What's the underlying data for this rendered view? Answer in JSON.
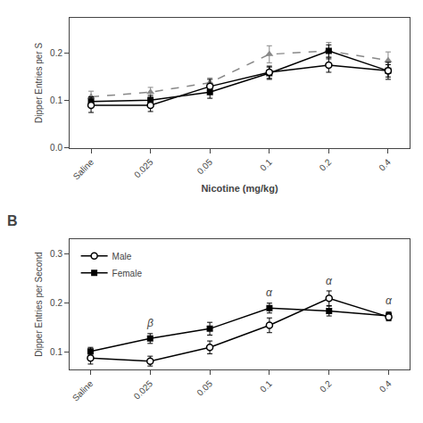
{
  "chart_data": [
    {
      "type": "line",
      "categories": [
        "Saline",
        "0.025",
        "0.05",
        "0.1",
        "0.2",
        "0.4"
      ],
      "xlabel": "Nicotine (mg/kg)",
      "ylabel": "Dipper Entries per S",
      "ylim": [
        0.0,
        0.275
      ],
      "yticks": [
        {
          "value": 0.0,
          "label": "0.0"
        },
        0.1,
        0.2
      ],
      "grid": false,
      "series": [
        {
          "color": "#888888",
          "marker": "triangle",
          "line_style": "dashed",
          "values": [
            0.108,
            0.118,
            0.138,
            0.198,
            0.205,
            0.185
          ],
          "yerr": [
            0.012,
            0.01,
            0.01,
            0.018,
            0.018,
            0.018
          ]
        },
        {
          "color": "#000000",
          "marker": "square",
          "line_style": "solid",
          "values": [
            0.098,
            0.101,
            0.118,
            0.158,
            0.205,
            0.163
          ],
          "yerr": [
            0.01,
            0.01,
            0.013,
            0.013,
            0.013,
            0.013
          ]
        },
        {
          "color": "#000000",
          "marker": "circle-open",
          "line_style": "solid",
          "values": [
            0.09,
            0.09,
            0.13,
            0.16,
            0.175,
            0.163
          ],
          "yerr": [
            0.015,
            0.013,
            0.015,
            0.013,
            0.015,
            0.018
          ]
        }
      ]
    },
    {
      "type": "line",
      "title": "B",
      "categories": [
        "Saline",
        "0.025",
        "0.05",
        "0.1",
        "0.2",
        "0.4"
      ],
      "ylabel": "Dipper Entries per Second",
      "ylim": [
        0.065,
        0.33
      ],
      "yticks": [
        0.1,
        0.2,
        0.3
      ],
      "grid": false,
      "legend": "upper left",
      "series": [
        {
          "name": "Female",
          "color": "#000000",
          "marker": "square",
          "line_style": "solid",
          "values": [
            0.102,
            0.128,
            0.148,
            0.19,
            0.184,
            0.174
          ],
          "yerr": [
            0.008,
            0.01,
            0.013,
            0.01,
            0.01,
            0.008
          ]
        },
        {
          "name": "Male",
          "color": "#000000",
          "marker": "circle-open",
          "line_style": "solid",
          "values": [
            0.088,
            0.082,
            0.11,
            0.155,
            0.21,
            0.172
          ],
          "yerr": [
            0.012,
            0.01,
            0.013,
            0.015,
            0.015,
            0.008
          ]
        }
      ],
      "annotations": [
        {
          "text": "β",
          "x": 1,
          "y": 0.143
        },
        {
          "text": "α",
          "x": 3,
          "y": 0.205
        },
        {
          "text": "α",
          "x": 4,
          "y": 0.228
        },
        {
          "text": "α",
          "x": 5,
          "y": 0.188
        }
      ]
    }
  ]
}
